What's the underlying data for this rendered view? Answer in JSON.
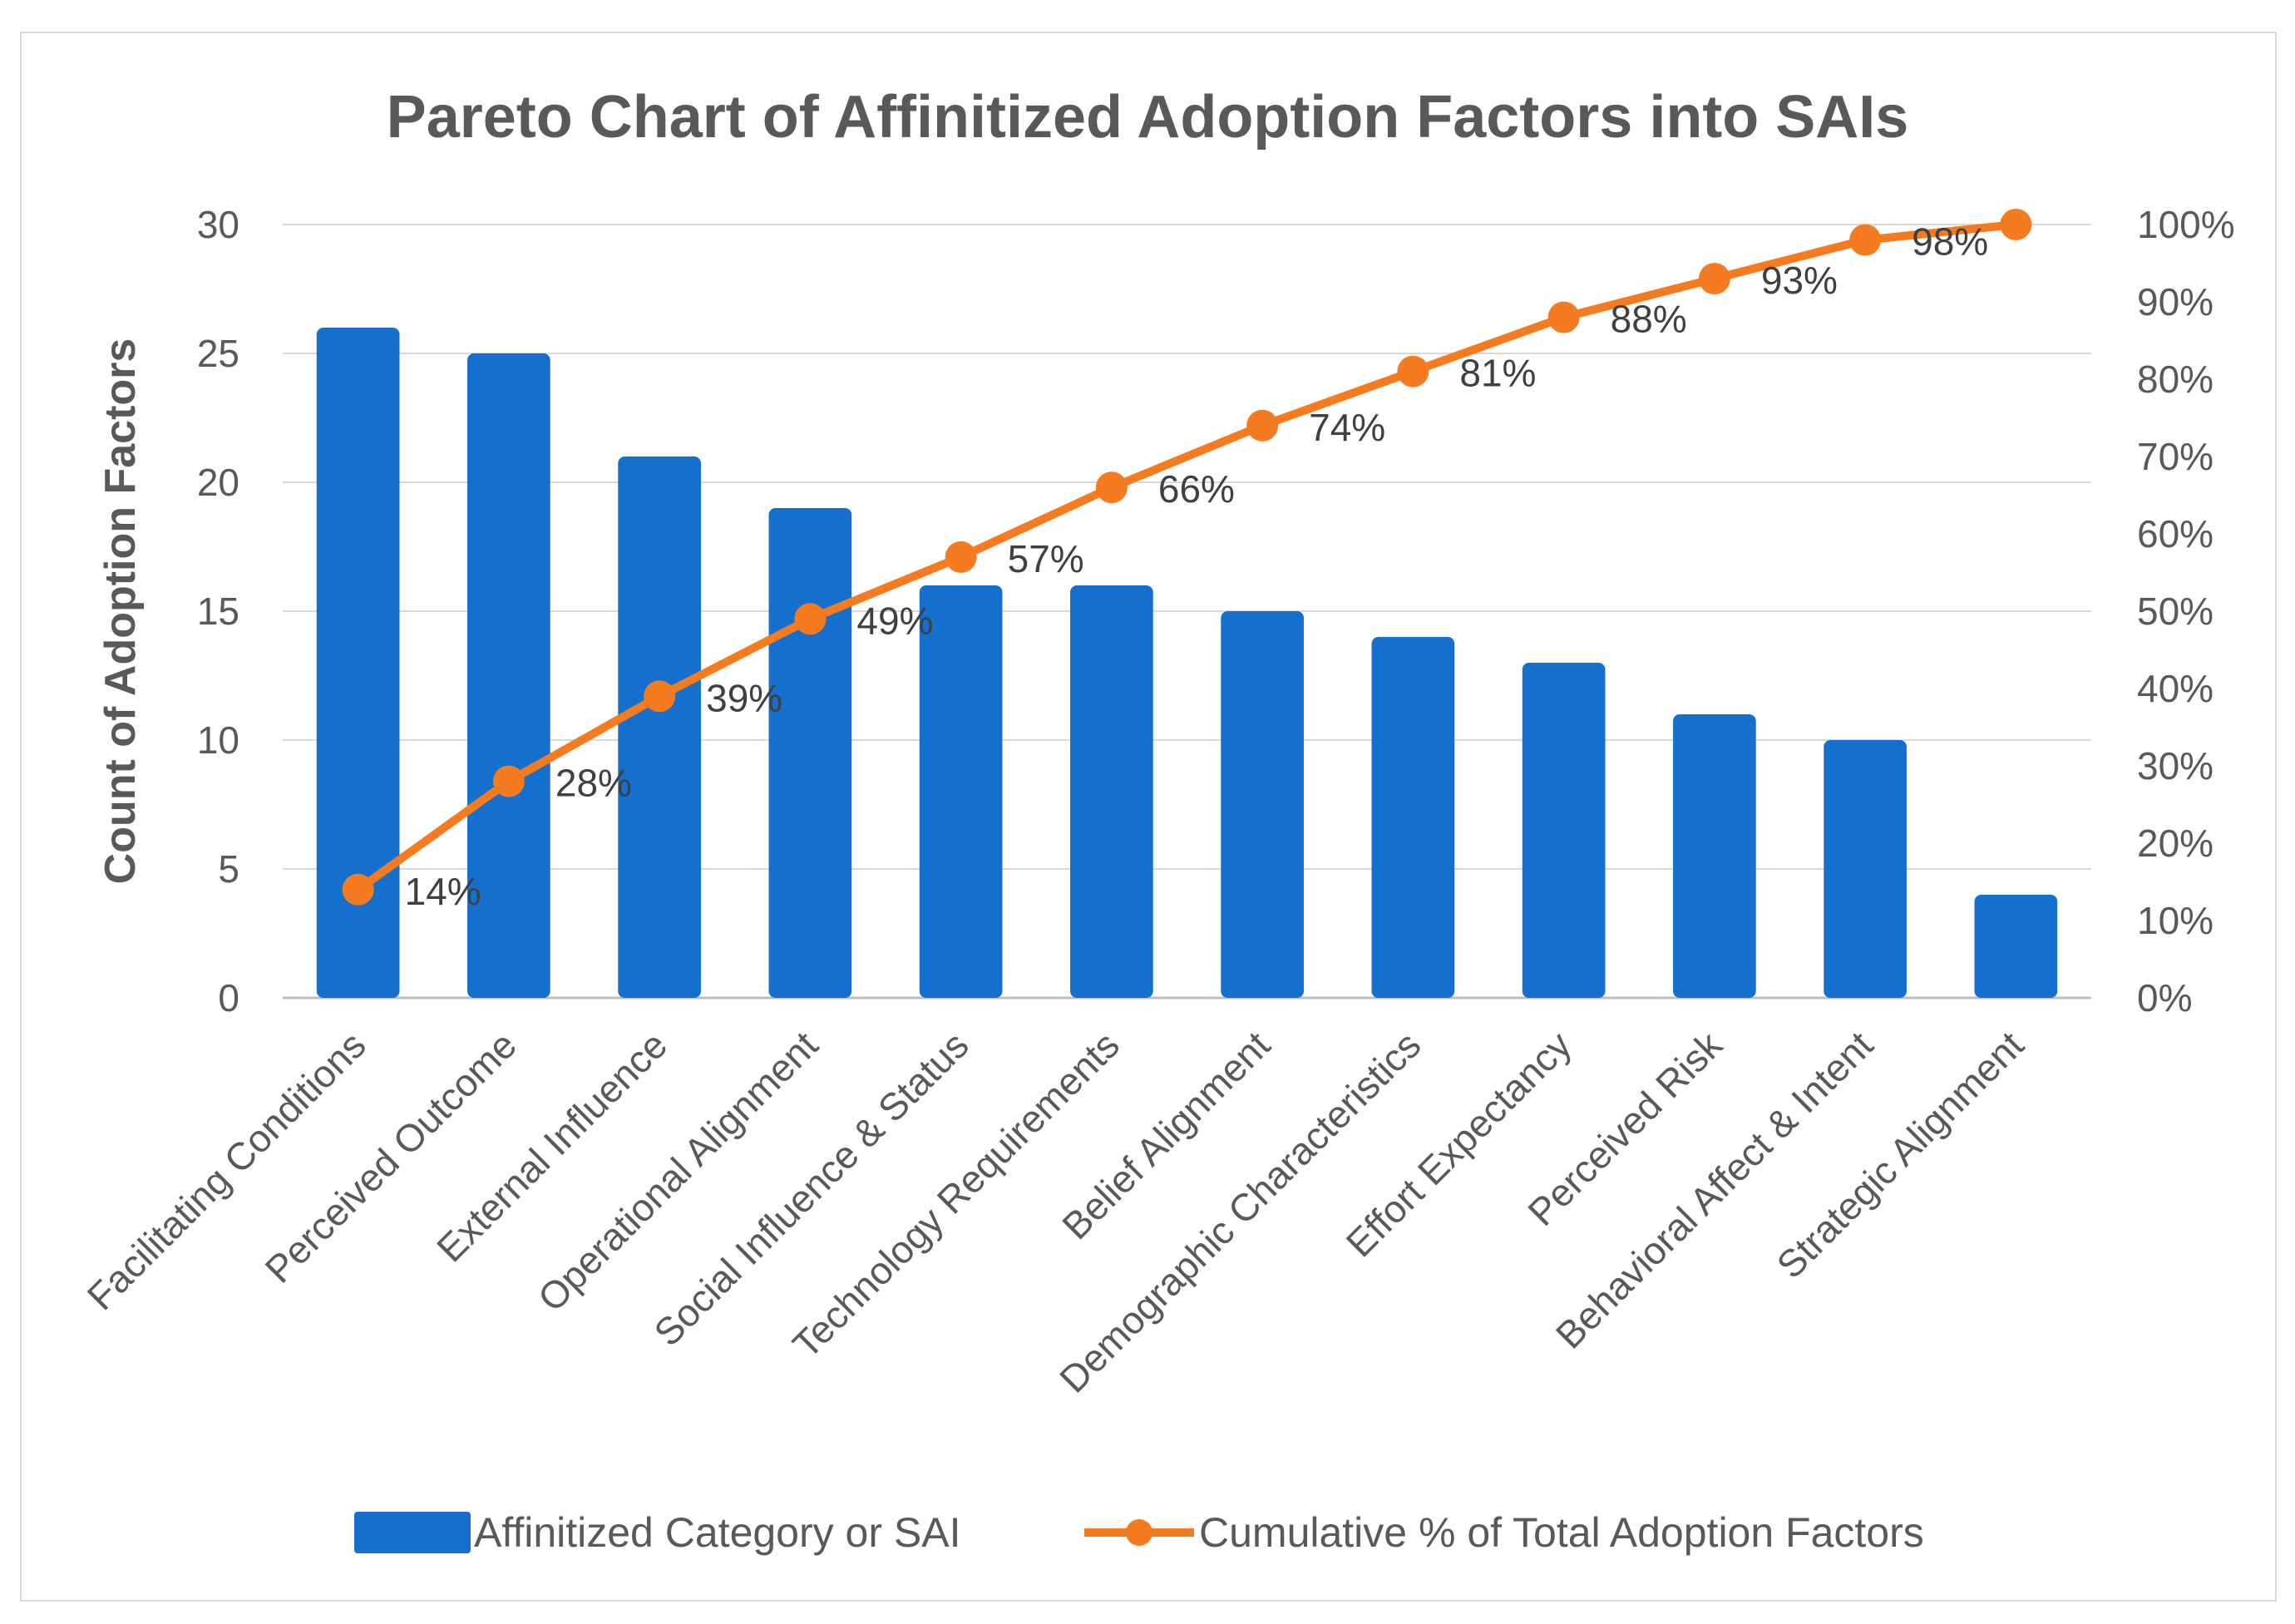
{
  "chart_data": {
    "type": "bar",
    "title": "Pareto Chart of Affinitized Adoption Factors into SAIs",
    "xlabel": "",
    "ylabel": "Count of Adoption Factors",
    "ylim": [
      0,
      30
    ],
    "y_ticks": [
      "0",
      "5",
      "10",
      "15",
      "20",
      "25",
      "30"
    ],
    "y2lim": [
      0,
      100
    ],
    "y2_ticks": [
      "0%",
      "10%",
      "20%",
      "30%",
      "40%",
      "50%",
      "60%",
      "70%",
      "80%",
      "90%",
      "100%"
    ],
    "grid": true,
    "legend_position": "bottom",
    "categories": [
      "Facilitating Conditions",
      "Perceived Outcome",
      "External Influence",
      "Operational Alignment",
      "Social Influence & Status",
      "Technology Requirements",
      "Belief Alignment",
      "Demographic Characteristics",
      "Effort Expectancy",
      "Perceived Risk",
      "Behavioral Affect & Intent",
      "Strategic Alignment"
    ],
    "series": [
      {
        "name": "Affinitized Category or SAI",
        "type": "bar",
        "axis": "left",
        "color": "#1470cc",
        "values": [
          26,
          25,
          21,
          19,
          16,
          16,
          15,
          14,
          13,
          11,
          10,
          4
        ]
      },
      {
        "name": "Cumulative % of Total Adoption Factors",
        "type": "line",
        "axis": "right",
        "color": "#f47b20",
        "values": [
          14,
          28,
          39,
          49,
          57,
          66,
          74,
          81,
          88,
          93,
          98,
          100
        ],
        "labels": [
          "14%",
          "28%",
          "39%",
          "49%",
          "57%",
          "66%",
          "74%",
          "81%",
          "88%",
          "93%",
          "98%",
          ""
        ]
      }
    ]
  }
}
